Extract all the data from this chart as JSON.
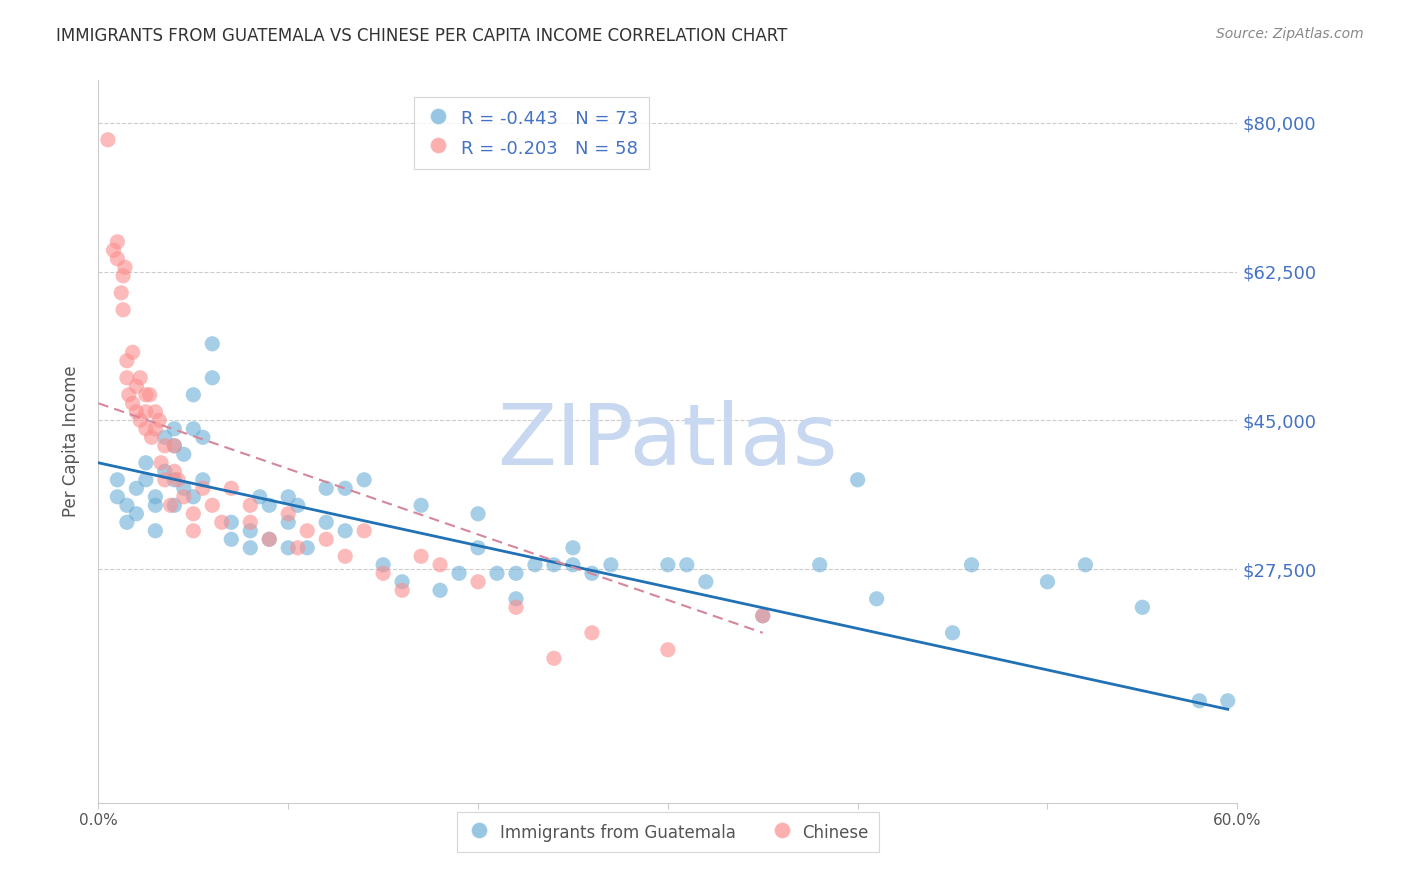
{
  "title": "IMMIGRANTS FROM GUATEMALA VS CHINESE PER CAPITA INCOME CORRELATION CHART",
  "source": "Source: ZipAtlas.com",
  "ylabel": "Per Capita Income",
  "x_min": 0.0,
  "x_max": 0.6,
  "y_min": 0,
  "y_max": 85000,
  "yticks": [
    0,
    27500,
    45000,
    62500,
    80000
  ],
  "ytick_labels": [
    "",
    "$27,500",
    "$45,000",
    "$62,500",
    "$80,000"
  ],
  "xticks": [
    0.0,
    0.1,
    0.2,
    0.3,
    0.4,
    0.5,
    0.6
  ],
  "xtick_labels": [
    "0.0%",
    "",
    "",
    "",
    "",
    "",
    "60.0%"
  ],
  "legend_entry1": "R = -0.443   N = 73",
  "legend_entry2": "R = -0.203   N = 58",
  "legend_label1": "Immigrants from Guatemala",
  "legend_label2": "Chinese",
  "scatter_color_blue": "#6baed6",
  "scatter_color_pink": "#fc8d8d",
  "line_color_blue": "#2171b5",
  "line_color_pink_trend": "#d4879a",
  "watermark_text": "ZIPatlas",
  "watermark_color": "#c8d8f0",
  "title_color": "#333333",
  "axis_label_color": "#555555",
  "ytick_color": "#4472c4",
  "background_color": "#ffffff",
  "grid_color": "#cccccc",
  "blue_x": [
    0.01,
    0.01,
    0.015,
    0.015,
    0.02,
    0.02,
    0.025,
    0.025,
    0.03,
    0.03,
    0.03,
    0.035,
    0.035,
    0.04,
    0.04,
    0.04,
    0.04,
    0.045,
    0.045,
    0.05,
    0.05,
    0.05,
    0.055,
    0.055,
    0.06,
    0.06,
    0.07,
    0.07,
    0.08,
    0.08,
    0.085,
    0.09,
    0.09,
    0.1,
    0.1,
    0.1,
    0.105,
    0.11,
    0.12,
    0.12,
    0.13,
    0.13,
    0.14,
    0.15,
    0.16,
    0.17,
    0.18,
    0.19,
    0.2,
    0.2,
    0.21,
    0.22,
    0.22,
    0.23,
    0.24,
    0.25,
    0.25,
    0.26,
    0.27,
    0.3,
    0.31,
    0.32,
    0.35,
    0.38,
    0.4,
    0.41,
    0.45,
    0.46,
    0.5,
    0.52,
    0.55,
    0.58,
    0.595
  ],
  "blue_y": [
    38000,
    36000,
    35000,
    33000,
    37000,
    34000,
    40000,
    38000,
    36000,
    35000,
    32000,
    43000,
    39000,
    44000,
    42000,
    38000,
    35000,
    41000,
    37000,
    48000,
    44000,
    36000,
    43000,
    38000,
    54000,
    50000,
    33000,
    31000,
    32000,
    30000,
    36000,
    35000,
    31000,
    36000,
    33000,
    30000,
    35000,
    30000,
    37000,
    33000,
    37000,
    32000,
    38000,
    28000,
    26000,
    35000,
    25000,
    27000,
    34000,
    30000,
    27000,
    27000,
    24000,
    28000,
    28000,
    30000,
    28000,
    27000,
    28000,
    28000,
    28000,
    26000,
    22000,
    28000,
    38000,
    24000,
    20000,
    28000,
    26000,
    28000,
    23000,
    12000,
    12000
  ],
  "pink_x": [
    0.005,
    0.008,
    0.01,
    0.01,
    0.012,
    0.013,
    0.013,
    0.014,
    0.015,
    0.015,
    0.016,
    0.018,
    0.018,
    0.02,
    0.02,
    0.022,
    0.022,
    0.025,
    0.025,
    0.025,
    0.027,
    0.028,
    0.03,
    0.03,
    0.032,
    0.033,
    0.035,
    0.035,
    0.038,
    0.04,
    0.04,
    0.042,
    0.045,
    0.05,
    0.05,
    0.055,
    0.06,
    0.065,
    0.07,
    0.08,
    0.08,
    0.09,
    0.1,
    0.105,
    0.11,
    0.12,
    0.13,
    0.14,
    0.15,
    0.16,
    0.17,
    0.18,
    0.2,
    0.22,
    0.24,
    0.26,
    0.3,
    0.35
  ],
  "pink_y": [
    78000,
    65000,
    66000,
    64000,
    60000,
    58000,
    62000,
    63000,
    52000,
    50000,
    48000,
    47000,
    53000,
    49000,
    46000,
    50000,
    45000,
    48000,
    46000,
    44000,
    48000,
    43000,
    46000,
    44000,
    45000,
    40000,
    42000,
    38000,
    35000,
    42000,
    39000,
    38000,
    36000,
    34000,
    32000,
    37000,
    35000,
    33000,
    37000,
    33000,
    35000,
    31000,
    34000,
    30000,
    32000,
    31000,
    29000,
    32000,
    27000,
    25000,
    29000,
    28000,
    26000,
    23000,
    17000,
    20000,
    18000,
    22000
  ],
  "blue_trend_x": [
    0.0,
    0.595
  ],
  "blue_trend_y": [
    40000,
    11000
  ],
  "pink_trend_x": [
    0.0,
    0.35
  ],
  "pink_trend_y": [
    47000,
    20000
  ]
}
